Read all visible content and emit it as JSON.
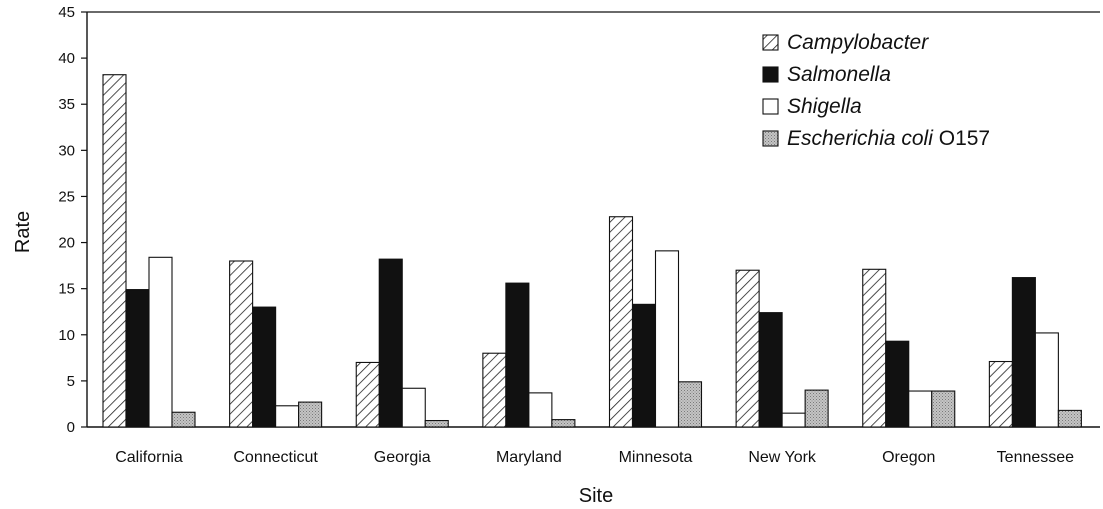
{
  "chart_data": {
    "type": "bar",
    "title": "",
    "xlabel": "Site",
    "ylabel": "Rate",
    "ylim": [
      0,
      45
    ],
    "yticks": [
      0,
      5,
      10,
      15,
      20,
      25,
      30,
      35,
      40,
      45
    ],
    "grid": false,
    "legend_position": "top-right",
    "categories": [
      "California",
      "Connecticut",
      "Georgia",
      "Maryland",
      "Minnesota",
      "New York",
      "Oregon",
      "Tennessee"
    ],
    "series": [
      {
        "name_italic": "Campylobacter",
        "name_suffix": "",
        "fill": "hatch",
        "values": [
          38.2,
          18.0,
          7.0,
          8.0,
          22.8,
          17.0,
          17.1,
          7.1
        ]
      },
      {
        "name_italic": "Salmonella",
        "name_suffix": "",
        "fill": "black",
        "values": [
          14.9,
          13.0,
          18.2,
          15.6,
          13.3,
          12.4,
          9.3,
          16.2
        ]
      },
      {
        "name_italic": "Shigella",
        "name_suffix": "",
        "fill": "white",
        "values": [
          18.4,
          2.3,
          4.2,
          3.7,
          19.1,
          1.5,
          3.9,
          10.2
        ]
      },
      {
        "name_italic": "Escherichia coli",
        "name_suffix": " O157",
        "fill": "gray",
        "values": [
          1.6,
          2.7,
          0.7,
          0.8,
          4.9,
          4.0,
          3.9,
          1.8
        ]
      }
    ]
  }
}
